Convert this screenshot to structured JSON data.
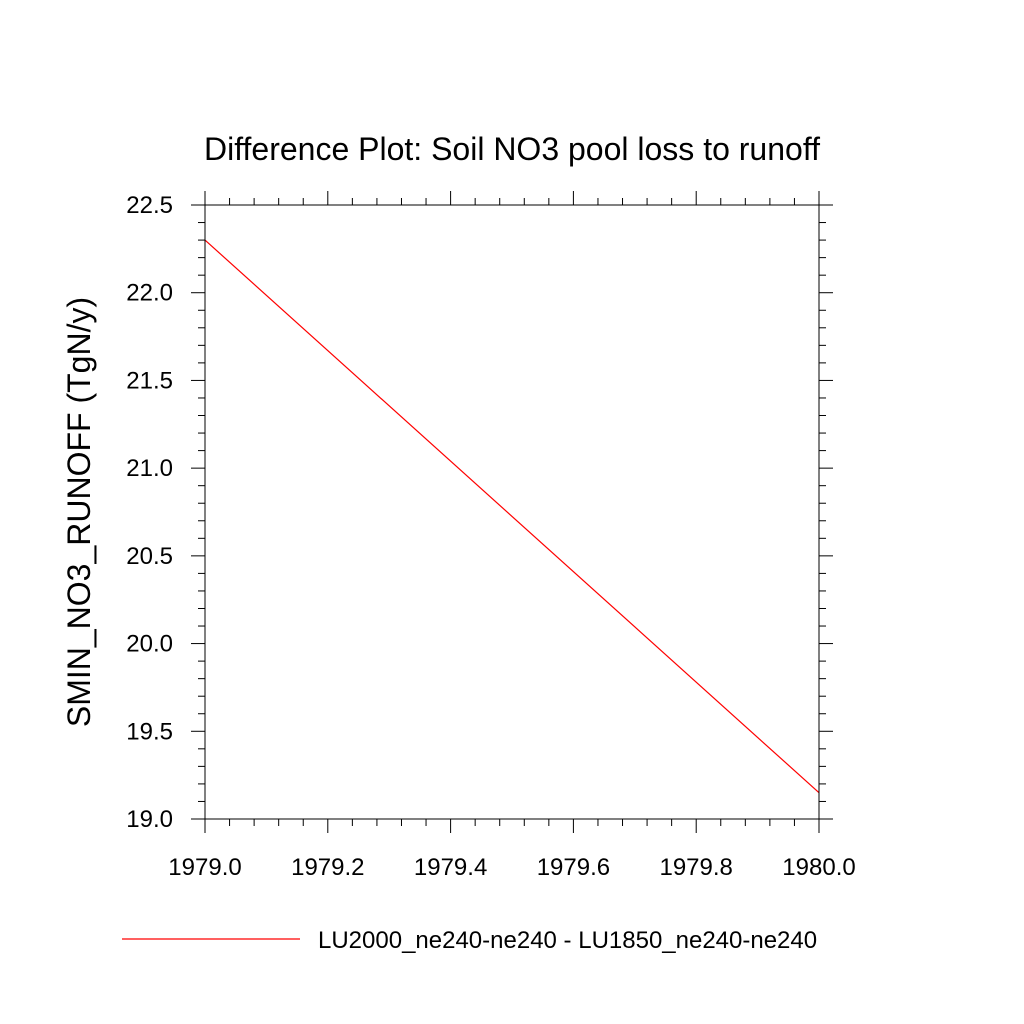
{
  "chart_data": {
    "type": "line",
    "title": "Difference Plot: Soil NO3 pool loss to runoff",
    "xlabel": "",
    "ylabel": "SMIN_NO3_RUNOFF  (TgN/y)",
    "xlim": [
      1979.0,
      1980.0
    ],
    "ylim": [
      19.0,
      22.5
    ],
    "x_ticks": [
      "1979.0",
      "1979.2",
      "1979.4",
      "1979.6",
      "1979.8",
      "1980.0"
    ],
    "y_ticks": [
      "19.0",
      "19.5",
      "20.0",
      "20.5",
      "21.0",
      "21.5",
      "22.0",
      "22.5"
    ],
    "grid": false,
    "legend_position": "bottom",
    "series": [
      {
        "name": "LU2000_ne240-ne240 - LU1850_ne240-ne240",
        "color": "#ff0000",
        "x": [
          1979.0,
          1980.0
        ],
        "y": [
          22.3,
          19.15
        ]
      }
    ]
  }
}
